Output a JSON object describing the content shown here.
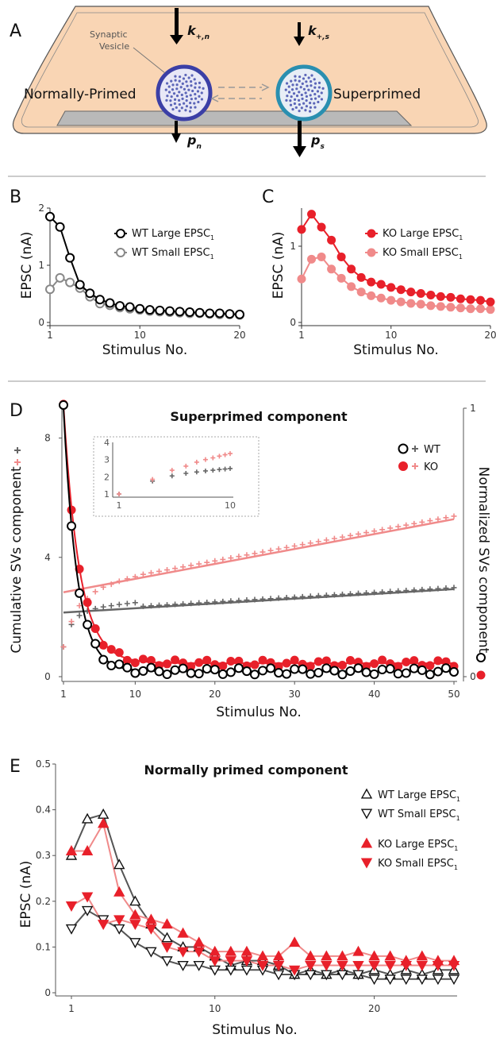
{
  "panels": {
    "A": {
      "letter": "A",
      "vesicle_label": [
        "Synaptic",
        "Vesicle"
      ],
      "left_state": "Normally-Primed",
      "right_state": "Superprimed",
      "rates": {
        "k_n": {
          "main": "k",
          "sub": "+,n"
        },
        "k_s": {
          "main": "k",
          "sub": "+,s"
        },
        "p_n": {
          "main": "p",
          "sub": "n"
        },
        "p_s": {
          "main": "p",
          "sub": "s"
        }
      }
    },
    "B": {
      "letter": "B"
    },
    "C": {
      "letter": "C"
    },
    "D": {
      "letter": "D"
    },
    "E": {
      "letter": "E"
    }
  },
  "chart_data": [
    {
      "id": "B",
      "type": "line",
      "title": "",
      "xlabel": "Stimulus No.",
      "ylabel": "EPSC (nA)",
      "xlim": [
        1,
        20
      ],
      "ylim": [
        0,
        2
      ],
      "xticks": [
        1,
        10,
        20
      ],
      "yticks": [
        0,
        1,
        2
      ],
      "legend_position": "right",
      "series": [
        {
          "name": "WT Large EPSC",
          "sub": "1",
          "color": "#000000",
          "marker": "open-circle",
          "x": [
            1,
            2,
            3,
            4,
            5,
            6,
            7,
            8,
            9,
            10,
            11,
            12,
            13,
            14,
            15,
            16,
            17,
            18,
            19,
            20
          ],
          "values": [
            1.85,
            1.67,
            1.13,
            0.66,
            0.51,
            0.4,
            0.34,
            0.29,
            0.27,
            0.24,
            0.22,
            0.21,
            0.2,
            0.19,
            0.18,
            0.17,
            0.16,
            0.16,
            0.15,
            0.14
          ]
        },
        {
          "name": "WT Small EPSC",
          "sub": "1",
          "color": "#888888",
          "marker": "open-circle",
          "x": [
            1,
            2,
            3,
            4,
            5,
            6,
            7,
            8,
            9,
            10,
            11,
            12,
            13,
            14,
            15,
            16,
            17,
            18,
            19,
            20
          ],
          "values": [
            0.58,
            0.78,
            0.7,
            0.6,
            0.45,
            0.33,
            0.3,
            0.26,
            0.24,
            0.22,
            0.2,
            0.19,
            0.18,
            0.17,
            0.16,
            0.16,
            0.15,
            0.14,
            0.14,
            0.13
          ]
        }
      ]
    },
    {
      "id": "C",
      "type": "line",
      "title": "",
      "xlabel": "Stimulus No.",
      "ylabel": "EPSC (nA)",
      "xlim": [
        1,
        20
      ],
      "ylim": [
        0,
        1.5
      ],
      "xticks": [
        1,
        10,
        20
      ],
      "yticks": [
        0,
        1
      ],
      "legend_position": "right",
      "series": [
        {
          "name": "KO Large EPSC",
          "sub": "1",
          "color": "#e8202a",
          "marker": "filled-circle",
          "x": [
            1,
            2,
            3,
            4,
            5,
            6,
            7,
            8,
            9,
            10,
            11,
            12,
            13,
            14,
            15,
            16,
            17,
            18,
            19,
            20
          ],
          "values": [
            1.22,
            1.42,
            1.25,
            1.08,
            0.86,
            0.7,
            0.59,
            0.53,
            0.5,
            0.46,
            0.43,
            0.4,
            0.38,
            0.36,
            0.34,
            0.33,
            0.31,
            0.3,
            0.29,
            0.27
          ]
        },
        {
          "name": "KO Small EPSC",
          "sub": "1",
          "color": "#f08a8a",
          "marker": "filled-circle",
          "x": [
            1,
            2,
            3,
            4,
            5,
            6,
            7,
            8,
            9,
            10,
            11,
            12,
            13,
            14,
            15,
            16,
            17,
            18,
            19,
            20
          ],
          "values": [
            0.57,
            0.83,
            0.86,
            0.7,
            0.58,
            0.47,
            0.4,
            0.35,
            0.32,
            0.29,
            0.27,
            0.25,
            0.24,
            0.22,
            0.21,
            0.2,
            0.19,
            0.18,
            0.18,
            0.17
          ]
        }
      ]
    },
    {
      "id": "D",
      "type": "scatter",
      "title": "Superprimed component",
      "xlabel": "Stimulus No.",
      "ylabel_left": "Cumulative SVs component",
      "ylabel_right": "Normalized SVs component",
      "xlim": [
        0,
        50
      ],
      "ylim_left": [
        0,
        9
      ],
      "ylim_right": [
        0,
        1
      ],
      "xticks": [
        1,
        10,
        20,
        30,
        40,
        50
      ],
      "yticks_left": [
        0,
        4,
        8
      ],
      "yticks_right": [
        0,
        1
      ],
      "legend": [
        {
          "name": "WT",
          "color": "#000000",
          "marker": "open-circle",
          "cross_color": "#666666"
        },
        {
          "name": "KO",
          "color": "#e8202a",
          "marker": "filled-circle",
          "cross_color": "#f08a8a"
        }
      ],
      "cumulative_fit": {
        "WT": {
          "intercept": 2.15,
          "slope": 0.016
        },
        "KO": {
          "intercept": 2.83,
          "slope": 0.05
        }
      },
      "normalized_decay": {
        "WT": {
          "amp": 0.98,
          "tau": 1.7,
          "base": 0.02
        },
        "KO": {
          "amp": 0.96,
          "tau": 2.0,
          "base": 0.05
        }
      },
      "inset": {
        "xlim": [
          1,
          10
        ],
        "ylim": [
          1,
          4
        ],
        "xticks": [
          1,
          10
        ],
        "yticks": [
          1,
          2,
          3,
          4
        ],
        "WT": [
          1.0,
          1.75,
          2.05,
          2.2,
          2.28,
          2.34,
          2.38,
          2.42,
          2.45,
          2.48
        ],
        "KO": [
          1.0,
          1.85,
          2.38,
          2.62,
          2.85,
          3.0,
          3.1,
          3.2,
          3.28,
          3.35
        ]
      }
    },
    {
      "id": "E",
      "type": "line",
      "title": "Normally primed component",
      "xlabel": "Stimulus No.",
      "ylabel": "EPSC (nA)",
      "xlim": [
        1,
        25
      ],
      "ylim": [
        0,
        0.5
      ],
      "xticks": [
        1,
        10,
        20
      ],
      "yticks": [
        0,
        0.1,
        0.2,
        0.3,
        0.4,
        0.5
      ],
      "legend_position": "top-right",
      "series": [
        {
          "name": "WT Large EPSC",
          "sub": "1",
          "color": "#555555",
          "marker": "open-triangle-up",
          "values": [
            0.3,
            0.38,
            0.39,
            0.28,
            0.2,
            0.15,
            0.12,
            0.1,
            0.1,
            0.08,
            0.06,
            0.07,
            0.07,
            0.06,
            0.04,
            0.05,
            0.04,
            0.05,
            0.04,
            0.05,
            0.04,
            0.05,
            0.04,
            0.05,
            0.05
          ]
        },
        {
          "name": "WT Small EPSC",
          "sub": "1",
          "color": "#555555",
          "marker": "open-triangle-down",
          "values": [
            0.14,
            0.18,
            0.16,
            0.14,
            0.11,
            0.09,
            0.07,
            0.06,
            0.06,
            0.05,
            0.05,
            0.05,
            0.05,
            0.04,
            0.04,
            0.04,
            0.04,
            0.04,
            0.04,
            0.03,
            0.03,
            0.03,
            0.03,
            0.03,
            0.03
          ]
        },
        {
          "name": "KO Large EPSC",
          "sub": "1",
          "color": "#e8202a",
          "marker": "filled-triangle-up",
          "values": [
            0.31,
            0.31,
            0.37,
            0.22,
            0.17,
            0.16,
            0.15,
            0.13,
            0.11,
            0.09,
            0.09,
            0.09,
            0.08,
            0.08,
            0.11,
            0.08,
            0.08,
            0.08,
            0.09,
            0.08,
            0.08,
            0.07,
            0.08,
            0.07,
            0.07
          ]
        },
        {
          "name": "KO Small EPSC",
          "sub": "1",
          "color": "#e8202a",
          "marker": "filled-triangle-down",
          "values": [
            0.19,
            0.21,
            0.15,
            0.16,
            0.15,
            0.14,
            0.1,
            0.09,
            0.09,
            0.07,
            0.07,
            0.07,
            0.06,
            0.06,
            0.05,
            0.06,
            0.06,
            0.06,
            0.06,
            0.06,
            0.06,
            0.06,
            0.06,
            0.06,
            0.06
          ]
        }
      ]
    }
  ]
}
